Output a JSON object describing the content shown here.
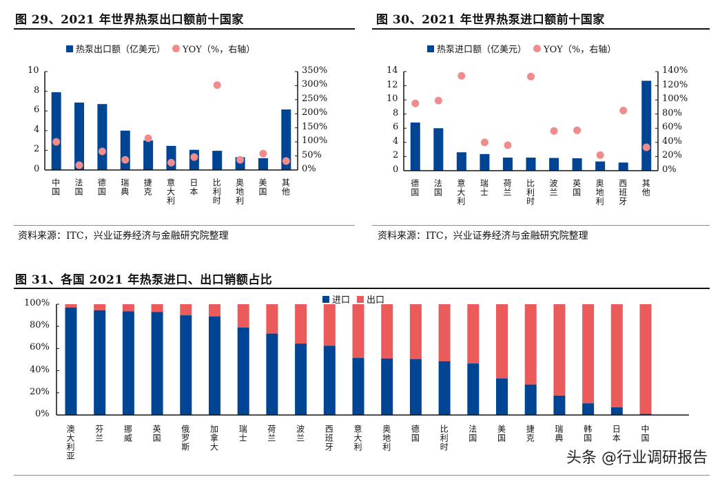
{
  "colors": {
    "bar": "#004494",
    "dot": "#f08c8c",
    "export": "#ec5b5b"
  },
  "chart_data": [
    {
      "type": "bar+scatter",
      "title": "图 29、2021 年世界热泵出口额前十国家",
      "legend": {
        "bar": "热泵出口额（亿美元）",
        "dot": "YOY（%，右轴）",
        "placement": "top"
      },
      "categories": [
        "中国",
        "法国",
        "德国",
        "瑞典",
        "捷克",
        "意大利",
        "日本",
        "比利时",
        "奥地利",
        "美国",
        "其他"
      ],
      "bar_values": [
        7.9,
        6.85,
        6.7,
        4.0,
        3.0,
        2.45,
        2.05,
        1.95,
        1.3,
        1.2,
        6.15
      ],
      "yoy_values": [
        100,
        17,
        66,
        36,
        113,
        26,
        46,
        302,
        36,
        58,
        32
      ],
      "ylim": [
        0,
        10
      ],
      "yticks": [
        "0",
        "2",
        "4",
        "6",
        "8",
        "10"
      ],
      "y2lim": [
        0,
        350
      ],
      "y2ticks": [
        "0%",
        "50%",
        "100%",
        "150%",
        "200%",
        "250%",
        "300%",
        "350%"
      ],
      "source": "资料来源：ITC，兴业证券经济与金融研究院整理"
    },
    {
      "type": "bar+scatter",
      "title": "图 30、2021 年世界热泵进口额前十国家",
      "legend": {
        "bar": "热泵进口额（亿美元）",
        "dot": "YOY（%，右轴）",
        "placement": "top"
      },
      "categories": [
        "德国",
        "法国",
        "意大利",
        "瑞士",
        "荷兰",
        "比利时",
        "波兰",
        "英国",
        "奥地利",
        "西班牙",
        "其他"
      ],
      "bar_values": [
        6.8,
        6.0,
        2.6,
        2.35,
        1.85,
        1.85,
        1.8,
        1.75,
        1.3,
        1.15,
        12.7
      ],
      "yoy_values": [
        95,
        99,
        134,
        40,
        36,
        133,
        56,
        57,
        22,
        85,
        33
      ],
      "ylim": [
        0,
        14
      ],
      "yticks": [
        "0",
        "2",
        "4",
        "6",
        "8",
        "10",
        "12",
        "14"
      ],
      "y2lim": [
        0,
        140
      ],
      "y2ticks": [
        "0%",
        "20%",
        "40%",
        "60%",
        "80%",
        "100%",
        "120%",
        "140%"
      ],
      "source": "资料来源：ITC，兴业证券经济与金融研究院整理"
    },
    {
      "type": "stacked-bar",
      "title": "图 31、各国 2021 年热泵进口、出口销额占比",
      "legend": {
        "import": "进口",
        "export": "出口",
        "placement": "top"
      },
      "categories": [
        "澳大利亚",
        "芬兰",
        "挪威",
        "英国",
        "俄罗斯",
        "加拿大",
        "瑞士",
        "荷兰",
        "波兰",
        "西班牙",
        "意大利",
        "奥地利",
        "德国",
        "比利时",
        "法国",
        "美国",
        "捷克",
        "瑞典",
        "韩国",
        "日本",
        "中国"
      ],
      "import_share": [
        97,
        94.5,
        93.5,
        93,
        90,
        89,
        79,
        73.5,
        64.5,
        62.5,
        51.5,
        51,
        50.5,
        48.5,
        46.5,
        33,
        27.5,
        17.5,
        10.5,
        7,
        1
      ],
      "ylim": [
        0,
        100
      ],
      "yticks": [
        "0%",
        "20%",
        "40%",
        "60%",
        "80%",
        "100%"
      ]
    }
  ],
  "watermark": "头条 @行业调研报告"
}
